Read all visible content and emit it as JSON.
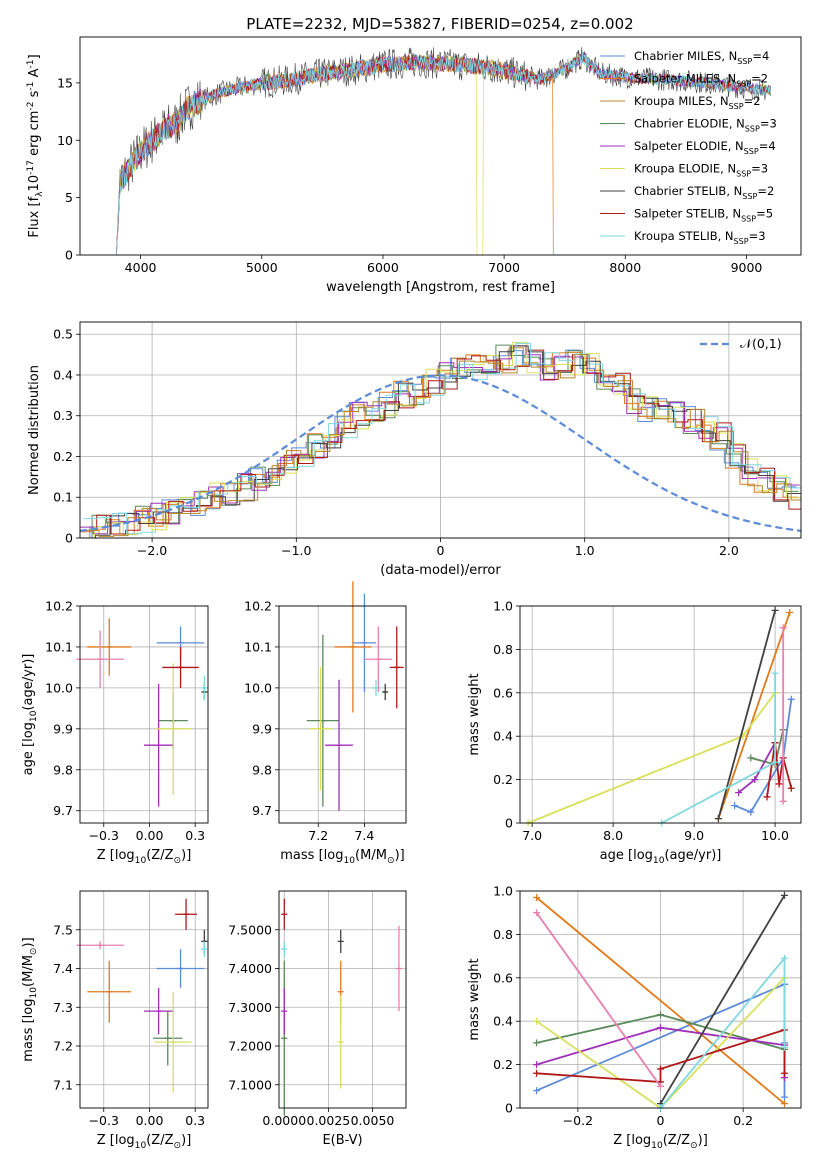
{
  "figure": {
    "title": "PLATE=2232, MJD=53827, FIBERID=0254, z=0.002",
    "series": [
      {
        "name": "Chabrier MILES, N$_{SSP}$=4",
        "imf": "Chabrier",
        "lib": "MILES",
        "nssp": "4",
        "color": "#5b8bd9"
      },
      {
        "name": "Salpeter MILES, N$_{SSP}$=2",
        "imf": "Salpeter",
        "lib": "MILES",
        "nssp": "2",
        "color": "#e07a1a"
      },
      {
        "name": "Kroupa MILES, N$_{SSP}$=2",
        "imf": "Kroupa",
        "lib": "MILES",
        "nssp": "2",
        "color": "#b8862b"
      },
      {
        "name": "Chabrier ELODIE, N$_{SSP}$=3",
        "imf": "Chabrier",
        "lib": "ELODIE",
        "nssp": "3",
        "color": "#5a8a5a"
      },
      {
        "name": "Salpeter ELODIE, N$_{SSP}$=4",
        "imf": "Salpeter",
        "lib": "ELODIE",
        "nssp": "4",
        "color": "#a030b8"
      },
      {
        "name": "Kroupa ELODIE, N$_{SSP}$=3",
        "imf": "Kroupa",
        "lib": "ELODIE",
        "nssp": "3",
        "color": "#d8e05a"
      },
      {
        "name": "Chabrier STELIB, N$_{SSP}$=2",
        "imf": "Chabrier",
        "lib": "STELIB",
        "nssp": "2",
        "color": "#404040"
      },
      {
        "name": "Salpeter STELIB, N$_{SSP}$=5",
        "imf": "Salpeter",
        "lib": "STELIB",
        "nssp": "5",
        "color": "#b01818"
      },
      {
        "name": "Kroupa STELIB, N$_{SSP}$=3",
        "imf": "Kroupa",
        "lib": "STELIB",
        "nssp": "3",
        "color": "#80d8e0"
      }
    ],
    "extra_colors": {
      "pink": "#e880b0"
    }
  },
  "chart_data": [
    {
      "type": "line",
      "id": "spectrum",
      "xlabel": "wavelength [Angstrom, rest frame]",
      "ylabel": "Flux [f$_\\lambda$10$^{-17}$ erg cm$^{-2}$ s$^{-1}$ A$^{-1}$]",
      "xlim": [
        3500,
        9450
      ],
      "ylim": [
        0,
        19
      ],
      "xticks": [
        4000,
        5000,
        6000,
        7000,
        8000,
        9000
      ],
      "yticks": [
        0,
        5,
        10,
        15
      ],
      "legend": "top-right",
      "continuum": [
        [
          3800,
          6
        ],
        [
          3900,
          7.5
        ],
        [
          4000,
          9
        ],
        [
          4100,
          10
        ],
        [
          4200,
          11
        ],
        [
          4300,
          11.5
        ],
        [
          4400,
          13
        ],
        [
          4500,
          13.5
        ],
        [
          4700,
          14.3
        ],
        [
          5000,
          15
        ],
        [
          5200,
          15.2
        ],
        [
          5500,
          15.8
        ],
        [
          5800,
          16.2
        ],
        [
          6000,
          16.6
        ],
        [
          6300,
          16.8
        ],
        [
          6600,
          16.6
        ],
        [
          6900,
          16.3
        ],
        [
          7100,
          15.8
        ],
        [
          7300,
          15.3
        ],
        [
          7500,
          16.2
        ],
        [
          7650,
          17.2
        ],
        [
          7800,
          15.8
        ],
        [
          8000,
          15.5
        ],
        [
          8300,
          15.3
        ],
        [
          8600,
          15.1
        ],
        [
          8900,
          14.7
        ],
        [
          9200,
          14.3
        ]
      ],
      "drops": [
        {
          "x": 6800,
          "y": 0
        },
        {
          "x": 7420,
          "y": 0
        }
      ]
    },
    {
      "type": "bar",
      "id": "residuals",
      "xlabel": "(data-model)/error",
      "ylabel": "Normed distribution",
      "xlim": [
        -2.5,
        2.5
      ],
      "ylim": [
        0,
        0.53
      ],
      "xticks": [
        -2,
        -1,
        0,
        1,
        2
      ],
      "yticks": [
        0.0,
        0.1,
        0.2,
        0.3,
        0.4,
        0.5
      ],
      "legend_label": "$\\mathcal{N}(0,1)$",
      "bin_width": 0.1,
      "bins_from": -2.5,
      "hist": [
        0.02,
        0.025,
        0.03,
        0.04,
        0.045,
        0.055,
        0.06,
        0.07,
        0.085,
        0.1,
        0.11,
        0.125,
        0.14,
        0.16,
        0.18,
        0.2,
        0.23,
        0.25,
        0.28,
        0.3,
        0.31,
        0.33,
        0.35,
        0.36,
        0.38,
        0.4,
        0.41,
        0.42,
        0.43,
        0.44,
        0.45,
        0.43,
        0.42,
        0.42,
        0.43,
        0.42,
        0.39,
        0.37,
        0.34,
        0.32,
        0.31,
        0.3,
        0.29,
        0.27,
        0.25,
        0.2,
        0.16,
        0.14,
        0.12,
        0.1
      ]
    },
    {
      "type": "scatter",
      "id": "age-vs-z",
      "xlabel": "Z [log$_{10}$(Z/Z$_\\odot$)]",
      "ylabel": "age  [log$_{10}$(age/yr)]",
      "xlim": [
        -0.38,
        0.32
      ],
      "ylim": [
        9.67,
        10.2
      ],
      "xticks": [
        -0.25,
        0.0,
        0.25
      ],
      "yticks": [
        9.7,
        9.8,
        9.9,
        10.0,
        10.1,
        10.2
      ],
      "points": [
        {
          "s": 0,
          "x": 0.17,
          "y": 10.11,
          "xe": 0.13,
          "ye": 0.04
        },
        {
          "s": 1,
          "x": -0.22,
          "y": 10.1,
          "xe": 0.12,
          "ye": 0.07
        },
        {
          "s": 3,
          "x": 0.13,
          "y": 9.92,
          "xe": 0.08,
          "ye": 0.07
        },
        {
          "s": 4,
          "x": 0.05,
          "y": 9.86,
          "xe": 0.08,
          "ye": 0.15
        },
        {
          "s": 5,
          "x": 0.13,
          "y": 9.9,
          "xe": 0.1,
          "ye": 0.16
        },
        {
          "s": 6,
          "x": 0.3,
          "y": 9.99,
          "xe": 0.01,
          "ye": 0.02
        },
        {
          "s": 7,
          "x": 0.17,
          "y": 10.05,
          "xe": 0.1,
          "ye": 0.05
        },
        {
          "s": 8,
          "x": 0.3,
          "y": 10.0,
          "xe": 0.01,
          "ye": 0.03
        },
        {
          "s": "pink",
          "x": -0.27,
          "y": 10.07,
          "xe": 0.13,
          "ye": 0.07
        }
      ]
    },
    {
      "type": "scatter",
      "id": "age-vs-mass",
      "xlabel": "mass [log$_{10}$(M/M$_\\odot$)]",
      "ylabel": "",
      "xlim": [
        7.03,
        7.58
      ],
      "ylim": [
        9.67,
        10.2
      ],
      "xticks": [
        7.2,
        7.4
      ],
      "yticks": [
        9.7,
        9.8,
        9.9,
        10.0,
        10.1,
        10.2
      ],
      "points": [
        {
          "s": 0,
          "x": 7.4,
          "y": 10.11,
          "xe": 0.05,
          "ye": 0.12
        },
        {
          "s": 1,
          "x": 7.35,
          "y": 10.1,
          "xe": 0.08,
          "ye": 0.16
        },
        {
          "s": 3,
          "x": 7.22,
          "y": 9.92,
          "xe": 0.07,
          "ye": 0.21
        },
        {
          "s": 4,
          "x": 7.29,
          "y": 9.86,
          "xe": 0.06,
          "ye": 0.16
        },
        {
          "s": 5,
          "x": 7.21,
          "y": 9.9,
          "xe": 0.05,
          "ye": 0.15
        },
        {
          "s": 6,
          "x": 7.49,
          "y": 9.99,
          "xe": 0.01,
          "ye": 0.02
        },
        {
          "s": 7,
          "x": 7.54,
          "y": 10.05,
          "xe": 0.03,
          "ye": 0.1
        },
        {
          "s": 8,
          "x": 7.45,
          "y": 10.0,
          "xe": 0.02,
          "ye": 0.02
        },
        {
          "s": "pink",
          "x": 7.46,
          "y": 10.07,
          "xe": 0.06,
          "ye": 0.08
        }
      ]
    },
    {
      "type": "line",
      "id": "weight-vs-age",
      "xlabel": "age  [log$_{10}$(age/yr)]",
      "ylabel": "mass weight",
      "xlim": [
        6.85,
        10.32
      ],
      "ylim": [
        0,
        1
      ],
      "xticks": [
        7,
        8,
        9,
        10
      ],
      "yticks": [
        0.0,
        0.2,
        0.4,
        0.6,
        0.8,
        1.0
      ],
      "lines": [
        {
          "s": 0,
          "x": [
            9.5,
            9.7,
            10.1,
            10.2
          ],
          "y": [
            0.08,
            0.05,
            0.3,
            0.57
          ]
        },
        {
          "s": 1,
          "x": [
            9.3,
            10.18
          ],
          "y": [
            0.02,
            0.97
          ]
        },
        {
          "s": 3,
          "x": [
            9.7,
            10.0,
            10.1
          ],
          "y": [
            0.3,
            0.27,
            0.43
          ]
        },
        {
          "s": 4,
          "x": [
            9.55,
            9.75,
            10.0
          ],
          "y": [
            0.14,
            0.2,
            0.37
          ]
        },
        {
          "s": 5,
          "x": [
            6.95,
            9.6,
            10.0
          ],
          "y": [
            0.0,
            0.4,
            0.6
          ]
        },
        {
          "s": 6,
          "x": [
            9.3,
            10.0
          ],
          "y": [
            0.02,
            0.98
          ]
        },
        {
          "s": 7,
          "x": [
            9.9,
            10.0,
            10.05,
            10.1,
            10.2
          ],
          "y": [
            0.12,
            0.37,
            0.18,
            0.3,
            0.16
          ]
        },
        {
          "s": 8,
          "x": [
            8.6,
            10.0,
            10.0
          ],
          "y": [
            0.0,
            0.28,
            0.69
          ]
        },
        {
          "s": "pink",
          "x": [
            10.1,
            10.1
          ],
          "y": [
            0.1,
            0.9
          ]
        }
      ]
    },
    {
      "type": "scatter",
      "id": "mass-vs-z",
      "xlabel": "Z [log$_{10}$(Z/Z$_\\odot$)]",
      "ylabel": "mass [log$_{10}$(M/M$_\\odot$)]",
      "xlim": [
        -0.38,
        0.32
      ],
      "ylim": [
        7.04,
        7.6
      ],
      "xticks": [
        -0.25,
        0.0,
        0.25
      ],
      "yticks": [
        7.1,
        7.2,
        7.3,
        7.4,
        7.5
      ],
      "points": [
        {
          "s": 0,
          "x": 0.17,
          "y": 7.4,
          "xe": 0.13,
          "ye": 0.05
        },
        {
          "s": 1,
          "x": -0.22,
          "y": 7.34,
          "xe": 0.12,
          "ye": 0.08
        },
        {
          "s": 3,
          "x": 0.1,
          "y": 7.22,
          "xe": 0.08,
          "ye": 0.07
        },
        {
          "s": 4,
          "x": 0.05,
          "y": 7.29,
          "xe": 0.08,
          "ye": 0.06
        },
        {
          "s": 5,
          "x": 0.13,
          "y": 7.21,
          "xe": 0.1,
          "ye": 0.13
        },
        {
          "s": 6,
          "x": 0.3,
          "y": 7.47,
          "xe": 0.01,
          "ye": 0.03
        },
        {
          "s": 7,
          "x": 0.2,
          "y": 7.54,
          "xe": 0.06,
          "ye": 0.04
        },
        {
          "s": 8,
          "x": 0.3,
          "y": 7.45,
          "xe": 0.01,
          "ye": 0.02
        },
        {
          "s": "pink",
          "x": -0.27,
          "y": 7.46,
          "xe": 0.13,
          "ye": 0.01
        }
      ]
    },
    {
      "type": "scatter",
      "id": "mass-vs-ebv",
      "xlabel": "E(B-V)",
      "ylabel": "",
      "xlim": [
        -0.0003,
        0.0069
      ],
      "ylim": [
        7.04,
        7.6
      ],
      "xticks": [
        0.0,
        0.0025,
        0.005
      ],
      "yticks": [
        7.1,
        7.2,
        7.3,
        7.4,
        7.5
      ],
      "points": [
        {
          "s": 3,
          "x": 0.0,
          "y": 7.22,
          "ye": 0.2
        },
        {
          "s": 4,
          "x": 0.0,
          "y": 7.29,
          "ye": 0.06
        },
        {
          "s": 7,
          "x": 0.0,
          "y": 7.54,
          "ye": 0.04
        },
        {
          "s": 8,
          "x": 0.0,
          "y": 7.45,
          "ye": 0.02
        },
        {
          "s": 1,
          "x": 0.0032,
          "y": 7.34,
          "ye": 0.08
        },
        {
          "s": 5,
          "x": 0.0032,
          "y": 7.21,
          "ye": 0.12
        },
        {
          "s": 6,
          "x": 0.0032,
          "y": 7.47,
          "ye": 0.03
        },
        {
          "s": "pink",
          "x": 0.0065,
          "y": 7.4,
          "ye": 0.11
        }
      ]
    },
    {
      "type": "line",
      "id": "weight-vs-z",
      "xlabel": "Z [log$_{10}$(Z/Z$_\\odot$)]",
      "ylabel": "mass weight",
      "xlim": [
        -0.34,
        0.34
      ],
      "ylim": [
        0,
        1
      ],
      "xticks": [
        -0.2,
        0.0,
        0.2
      ],
      "yticks": [
        0.0,
        0.2,
        0.4,
        0.6,
        0.8,
        1.0
      ],
      "lines": [
        {
          "s": 0,
          "x": [
            -0.3,
            0.3,
            0.3,
            0.3
          ],
          "y": [
            0.08,
            0.57,
            0.05,
            0.3
          ]
        },
        {
          "s": 1,
          "x": [
            -0.3,
            0.3
          ],
          "y": [
            0.97,
            0.02
          ]
        },
        {
          "s": 3,
          "x": [
            -0.3,
            0.0,
            0.3
          ],
          "y": [
            0.3,
            0.43,
            0.27
          ]
        },
        {
          "s": 4,
          "x": [
            -0.3,
            0.0,
            0.3,
            0.3
          ],
          "y": [
            0.2,
            0.37,
            0.29,
            0.14
          ]
        },
        {
          "s": 5,
          "x": [
            -0.3,
            0.0,
            0.3
          ],
          "y": [
            0.4,
            0.0,
            0.6
          ]
        },
        {
          "s": 6,
          "x": [
            0.0,
            0.3
          ],
          "y": [
            0.02,
            0.98
          ]
        },
        {
          "s": 7,
          "x": [
            -0.3,
            0.0,
            0.0,
            0.3,
            0.3
          ],
          "y": [
            0.16,
            0.12,
            0.18,
            0.36,
            0.16
          ]
        },
        {
          "s": 8,
          "x": [
            0.0,
            0.3,
            0.3
          ],
          "y": [
            0.0,
            0.69,
            0.28
          ]
        },
        {
          "s": "pink",
          "x": [
            -0.3,
            0.0
          ],
          "y": [
            0.9,
            0.1
          ]
        }
      ]
    }
  ]
}
